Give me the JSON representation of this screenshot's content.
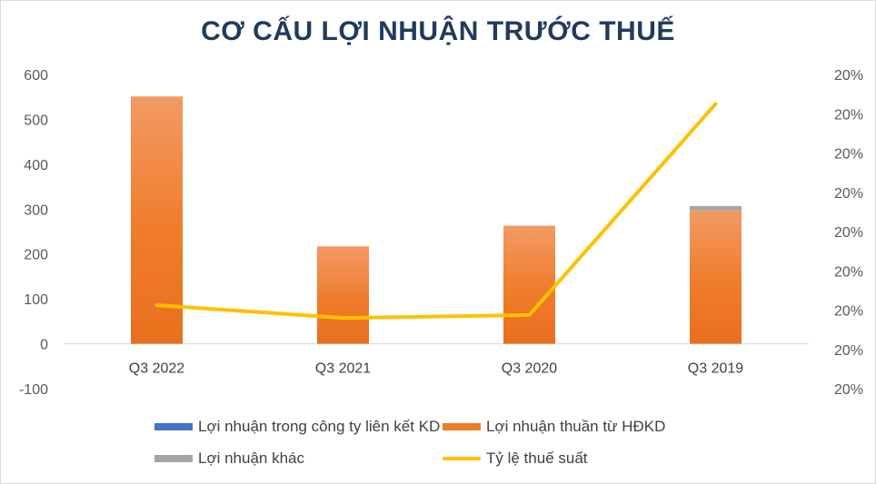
{
  "chart_data": {
    "type": "bar",
    "title": "CƠ CẤU LỢI NHUẬN TRƯỚC THUẾ",
    "categories": [
      "Q3 2022",
      "Q3 2021",
      "Q3 2020",
      "Q3 2019"
    ],
    "series": [
      {
        "name": "Lợi nhuận trong công ty liên kết KD",
        "type": "bar",
        "color": "#4472c4",
        "values": [
          0,
          0,
          0,
          0
        ]
      },
      {
        "name": "Lợi nhuận thuần từ HĐKD",
        "type": "bar",
        "color": "#f07c2a",
        "values": [
          551,
          217,
          263,
          297
        ]
      },
      {
        "name": "Lợi nhuận khác",
        "type": "bar",
        "color": "#a5a5a5",
        "values": [
          0,
          0,
          0,
          10
        ]
      },
      {
        "name": "Tỷ lệ thuế suất",
        "type": "line",
        "axis": "right",
        "color": "#ffc000",
        "values": [
          0.2,
          0.1987,
          0.199,
          0.2205
        ]
      }
    ],
    "y_left": {
      "ylim": [
        -100,
        600
      ],
      "ticks": [
        "-100",
        "0",
        "100",
        "200",
        "300",
        "400",
        "500",
        "600"
      ]
    },
    "y_right": {
      "ylim": [
        0.1915,
        0.2235
      ],
      "ticks": [
        "20%",
        "20%",
        "20%",
        "20%",
        "20%",
        "20%",
        "20%",
        "20%",
        "20%"
      ]
    },
    "legend_position": "bottom",
    "grid": false
  }
}
